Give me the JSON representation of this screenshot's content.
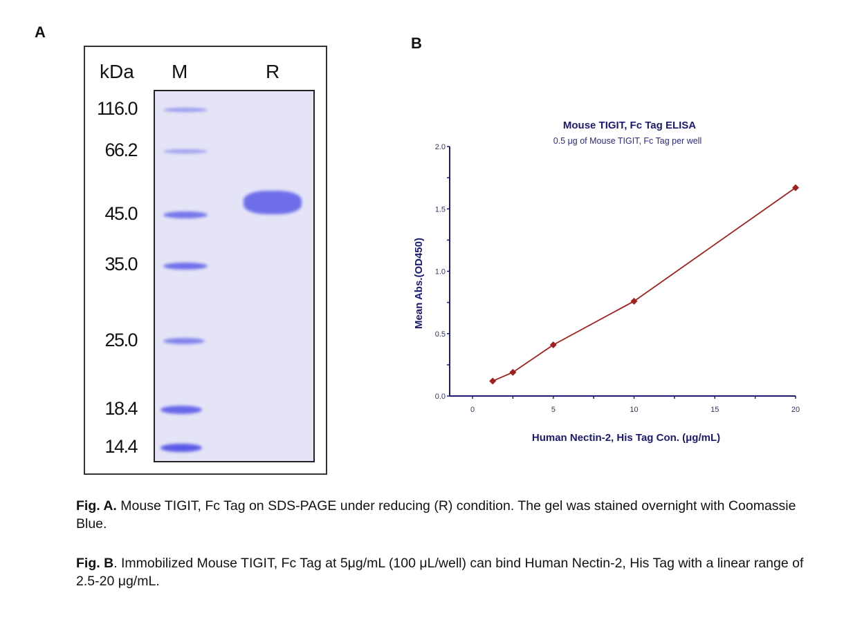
{
  "panel_a": {
    "label": "A",
    "unit_header": "kDa",
    "lanes": [
      "M",
      "R"
    ],
    "markers": [
      "116.0",
      "66.2",
      "45.0",
      "35.0",
      "25.0",
      "18.4",
      "14.4"
    ],
    "band_color": "#5a5ae8"
  },
  "panel_b": {
    "label": "B"
  },
  "chart_data": {
    "type": "line",
    "title": "Mouse TIGIT, Fc Tag ELISA",
    "subtitle": "0.5 μg of Mouse TIGIT, Fc Tag per well",
    "xlabel": "Human Nectin-2, His Tag Con. (μg/mL)",
    "ylabel": "Mean Abs.(OD450)",
    "xlim": [
      0,
      20
    ],
    "ylim": [
      0,
      2.0
    ],
    "xticks": [
      "0",
      "5",
      "10",
      "15",
      "20"
    ],
    "yticks": [
      "0.0",
      "0.5",
      "1.0",
      "1.5",
      "2.0"
    ],
    "grid": false,
    "series": [
      {
        "x": [
          1.25,
          2.5,
          5,
          10,
          20
        ],
        "y": [
          0.12,
          0.19,
          0.41,
          0.76,
          1.67
        ],
        "color": "#a0201e",
        "marker": "diamond"
      }
    ],
    "axis_color": "#1a1a6e"
  },
  "captions": {
    "a_label": "Fig. A.",
    "a_text": " Mouse TIGIT, Fc Tag on SDS-PAGE under reducing (R) condition. The gel was stained overnight with Coomassie Blue.",
    "b_label": "Fig. B",
    "b_text": ". Immobilized Mouse TIGIT, Fc Tag at 5μg/mL (100 μL/well) can bind Human Nectin-2, His Tag with a linear range of 2.5-20 μg/mL."
  }
}
